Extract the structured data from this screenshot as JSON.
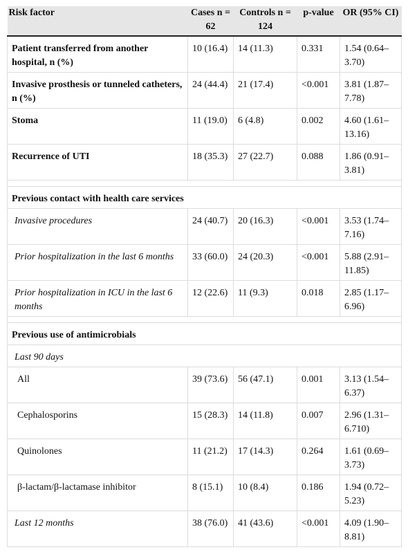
{
  "headers": {
    "risk_factor": "Risk factor",
    "cases": "Cases n = 62",
    "controls": "Controls n = 124",
    "p_value": "p-value",
    "or": "OR (95% CI)"
  },
  "rows": [
    {
      "label": "Patient transferred from another hospital, n (%)",
      "cases": "10 (16.4)",
      "controls": "14 (11.3)",
      "p": "0.331",
      "or": "1.54 (0.64–3.70)"
    },
    {
      "label": "Invasive prosthesis or tunneled catheters, n (%)",
      "cases": "24 (44.4)",
      "controls": "21 (17.4)",
      "p": "<0.001",
      "or": "3.81 (1.87–7.78)"
    },
    {
      "label": "Stoma",
      "cases": "11 (19.0)",
      "controls": "6 (4.8)",
      "p": "0.002",
      "or": "4.60 (1.61–13.16)"
    },
    {
      "label": "Recurrence of UTI",
      "cases": "18 (35.3)",
      "controls": "27 (22.7)",
      "p": "0.088",
      "or": "1.86 (0.91–3.81)"
    }
  ],
  "section_health": "Previous contact with health care services",
  "health_rows": [
    {
      "label": "Invasive procedures",
      "cases": "24 (40.7)",
      "controls": "20 (16.3)",
      "p": "<0.001",
      "or": "3.53 (1.74–7.16)"
    },
    {
      "label": "Prior hospitalization in the last 6 months",
      "cases": "33 (60.0)",
      "controls": "24 (20.3)",
      "p": "<0.001",
      "or": "5.88 (2.91–11.85)"
    },
    {
      "label": "Prior hospitalization in ICU in the last 6 months",
      "cases": "12 (22.6)",
      "controls": "11 (9.3)",
      "p": "0.018",
      "or": "2.85 (1.17–6.96)"
    }
  ],
  "section_antimicrobials": "Previous use of antimicrobials",
  "subsection_90": "Last 90 days",
  "antimicrobial_rows": [
    {
      "label": "All",
      "cases": "39 (73.6)",
      "controls": "56 (47.1)",
      "p": "0.001",
      "or": "3.13 (1.54–6.37)"
    },
    {
      "label": "Cephalosporins",
      "cases": "15 (28.3)",
      "controls": "14 (11.8)",
      "p": "0.007",
      "or": "2.96 (1.31–6.710)"
    },
    {
      "label": "Quinolones",
      "cases": "11 (21.2)",
      "controls": "17 (14.3)",
      "p": "0.264",
      "or": "1.61 (0.69–3.73)"
    },
    {
      "label": "β-lactam/β-lactamase inhibitor",
      "cases": "8 (15.1)",
      "controls": "10 (8.4)",
      "p": "0.186",
      "or": "1.94 (0.72–5.23)"
    }
  ],
  "last12": {
    "label": "Last 12 months",
    "cases": "38 (76.0)",
    "controls": "41 (43.6)",
    "p": "<0.001",
    "or": "4.09 (1.90–8.81)"
  }
}
